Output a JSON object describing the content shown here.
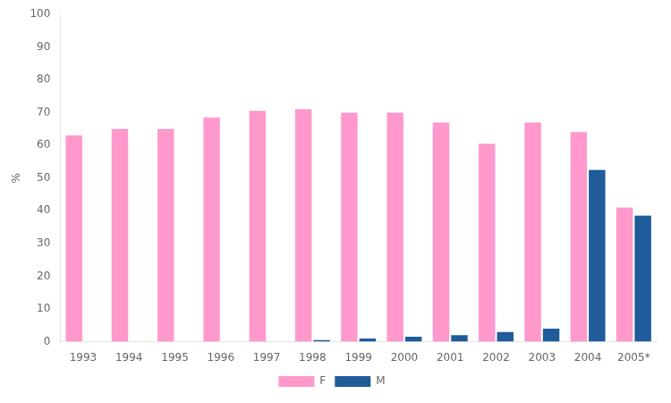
{
  "chart_data": {
    "type": "bar",
    "categories": [
      "1993",
      "1994",
      "1995",
      "1996",
      "1997",
      "1998",
      "1999",
      "2000",
      "2001",
      "2002",
      "2003",
      "2004",
      "2005*"
    ],
    "series": [
      {
        "name": "F",
        "color": "#FF99CC",
        "values": [
          63,
          65,
          65,
          68.5,
          70.5,
          71,
          70,
          70,
          67,
          60.5,
          67,
          64,
          41
        ]
      },
      {
        "name": "M",
        "color": "#1F5C99",
        "values": [
          0,
          0,
          0,
          0,
          0,
          0.5,
          1,
          1.5,
          2,
          3,
          4,
          52.5,
          38.5
        ]
      }
    ],
    "ylabel": "%",
    "ylim": [
      0,
      100
    ],
    "yticks": [
      0,
      10,
      20,
      30,
      40,
      50,
      60,
      70,
      80,
      90,
      100
    ],
    "grid": false,
    "legend": "bottom"
  }
}
